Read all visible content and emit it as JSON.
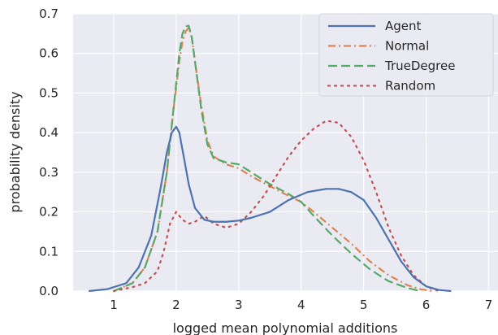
{
  "chart_data": {
    "type": "line",
    "title": "",
    "xlabel": "logged mean polynomial additions",
    "ylabel": "probability density",
    "xlim": [
      0.35,
      7.15
    ],
    "ylim": [
      0,
      0.7
    ],
    "xticks": [
      "1",
      "2",
      "3",
      "4",
      "5",
      "6",
      "7"
    ],
    "yticks": [
      "0.0",
      "0.1",
      "0.2",
      "0.3",
      "0.4",
      "0.5",
      "0.6",
      "0.7"
    ],
    "grid": true,
    "background": "#eaeaf2",
    "legend_position": "top-right",
    "series": [
      {
        "name": "Agent",
        "color": "#4c72b0",
        "style": "solid",
        "x": [
          0.6,
          0.9,
          1.2,
          1.4,
          1.6,
          1.75,
          1.85,
          1.93,
          2.0,
          2.05,
          2.12,
          2.2,
          2.3,
          2.45,
          2.6,
          2.8,
          3.0,
          3.2,
          3.5,
          3.8,
          4.1,
          4.4,
          4.6,
          4.8,
          5.0,
          5.2,
          5.4,
          5.6,
          5.8,
          6.0,
          6.2,
          6.4
        ],
        "y": [
          0.0,
          0.005,
          0.02,
          0.06,
          0.14,
          0.26,
          0.35,
          0.4,
          0.415,
          0.4,
          0.34,
          0.27,
          0.21,
          0.18,
          0.175,
          0.175,
          0.178,
          0.185,
          0.2,
          0.23,
          0.25,
          0.258,
          0.258,
          0.25,
          0.23,
          0.185,
          0.13,
          0.075,
          0.035,
          0.012,
          0.003,
          0.0
        ]
      },
      {
        "name": "Normal",
        "color": "#dd8452",
        "style": "dashdot",
        "x": [
          1.0,
          1.3,
          1.5,
          1.7,
          1.85,
          1.95,
          2.05,
          2.1,
          2.15,
          2.2,
          2.25,
          2.3,
          2.4,
          2.5,
          2.6,
          2.8,
          3.0,
          3.2,
          3.5,
          3.8,
          4.0,
          4.2,
          4.5,
          4.8,
          5.1,
          5.4,
          5.7,
          5.9,
          6.1
        ],
        "y": [
          0.0,
          0.02,
          0.06,
          0.15,
          0.3,
          0.45,
          0.58,
          0.63,
          0.655,
          0.665,
          0.64,
          0.58,
          0.47,
          0.38,
          0.34,
          0.32,
          0.31,
          0.29,
          0.265,
          0.24,
          0.225,
          0.2,
          0.16,
          0.12,
          0.075,
          0.04,
          0.015,
          0.005,
          0.0
        ]
      },
      {
        "name": "TrueDegree",
        "color": "#55a868",
        "style": "dashed",
        "x": [
          1.0,
          1.3,
          1.5,
          1.7,
          1.85,
          1.95,
          2.05,
          2.1,
          2.15,
          2.2,
          2.25,
          2.3,
          2.4,
          2.5,
          2.6,
          2.8,
          3.0,
          3.2,
          3.5,
          3.8,
          4.0,
          4.2,
          4.5,
          4.8,
          5.1,
          5.4,
          5.7,
          5.9
        ],
        "y": [
          0.0,
          0.02,
          0.06,
          0.15,
          0.3,
          0.45,
          0.6,
          0.65,
          0.668,
          0.67,
          0.64,
          0.58,
          0.46,
          0.37,
          0.335,
          0.325,
          0.32,
          0.3,
          0.27,
          0.245,
          0.225,
          0.19,
          0.14,
          0.095,
          0.055,
          0.025,
          0.008,
          0.0
        ]
      },
      {
        "name": "Random",
        "color": "#c44e52",
        "style": "dotted",
        "x": [
          1.0,
          1.3,
          1.5,
          1.7,
          1.8,
          1.9,
          2.0,
          2.1,
          2.2,
          2.3,
          2.45,
          2.6,
          2.8,
          3.0,
          3.2,
          3.4,
          3.6,
          3.8,
          4.0,
          4.2,
          4.4,
          4.6,
          4.8,
          5.0,
          5.2,
          5.4,
          5.6,
          5.8,
          6.0,
          6.2
        ],
        "y": [
          0.0,
          0.01,
          0.02,
          0.05,
          0.1,
          0.17,
          0.2,
          0.18,
          0.17,
          0.175,
          0.19,
          0.17,
          0.16,
          0.17,
          0.2,
          0.24,
          0.29,
          0.34,
          0.38,
          0.41,
          0.43,
          0.425,
          0.39,
          0.33,
          0.25,
          0.16,
          0.09,
          0.04,
          0.012,
          0.0
        ]
      }
    ]
  }
}
